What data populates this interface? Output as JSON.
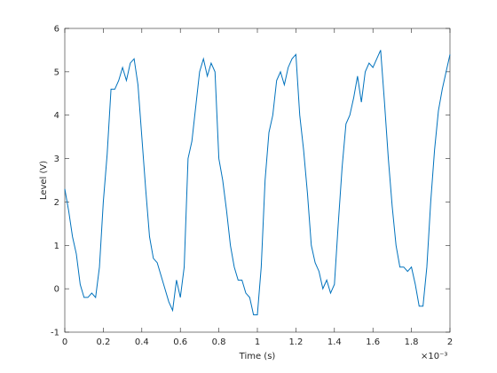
{
  "chart_data": {
    "type": "line",
    "xlabel": "Time (s)",
    "ylabel": "Level (V)",
    "x_exponent": "×10⁻³",
    "xlim": [
      0,
      2
    ],
    "xticks": [
      0,
      0.2,
      0.4,
      0.6,
      0.8,
      1,
      1.2,
      1.4,
      1.6,
      1.8,
      2
    ],
    "ylim": [
      -1,
      6
    ],
    "yticks": [
      -1,
      0,
      1,
      2,
      3,
      4,
      5,
      6
    ],
    "series": [
      {
        "color": "#0072bd",
        "x": [
          0,
          0.02,
          0.04,
          0.06,
          0.08,
          0.1,
          0.12,
          0.14,
          0.16,
          0.18,
          0.2,
          0.22,
          0.24,
          0.26,
          0.28,
          0.3,
          0.32,
          0.34,
          0.36,
          0.38,
          0.4,
          0.42,
          0.44,
          0.46,
          0.48,
          0.5,
          0.52,
          0.54,
          0.56,
          0.58,
          0.6,
          0.62,
          0.64,
          0.66,
          0.68,
          0.7,
          0.72,
          0.74,
          0.76,
          0.78,
          0.8,
          0.82,
          0.84,
          0.86,
          0.88,
          0.9,
          0.92,
          0.94,
          0.96,
          0.98,
          1,
          1.02,
          1.04,
          1.06,
          1.08,
          1.1,
          1.12,
          1.14,
          1.16,
          1.18,
          1.2,
          1.22,
          1.24,
          1.26,
          1.28,
          1.3,
          1.32,
          1.34,
          1.36,
          1.38,
          1.4,
          1.42,
          1.44,
          1.46,
          1.48,
          1.5,
          1.52,
          1.54,
          1.56,
          1.58,
          1.6,
          1.62,
          1.64,
          1.66,
          1.68,
          1.7,
          1.72,
          1.74,
          1.76,
          1.78,
          1.8,
          1.82,
          1.84,
          1.86,
          1.88,
          1.9,
          1.92,
          1.94,
          1.96,
          1.98,
          2
        ],
        "values": [
          2.3,
          1.8,
          1.2,
          0.8,
          0.1,
          -0.2,
          -0.2,
          -0.1,
          -0.2,
          0.5,
          2,
          3.1,
          4.6,
          4.6,
          4.8,
          5.1,
          4.8,
          5.2,
          5.3,
          4.7,
          3.5,
          2.3,
          1.2,
          0.7,
          0.6,
          0.3,
          0,
          -0.3,
          -0.5,
          0.2,
          -0.2,
          0.5,
          3,
          3.4,
          4.2,
          5,
          5.3,
          4.9,
          5.2,
          5,
          3,
          2.5,
          1.8,
          1,
          0.5,
          0.2,
          0.2,
          -0.1,
          -0.2,
          -0.6,
          -0.6,
          0.5,
          2.5,
          3.6,
          4,
          4.8,
          5,
          4.7,
          5.1,
          5.3,
          5.4,
          4,
          3.2,
          2.2,
          1,
          0.6,
          0.4,
          0,
          0.2,
          -0.1,
          0.1,
          1.5,
          2.8,
          3.8,
          4,
          4.4,
          4.9,
          4.3,
          5,
          5.2,
          5.1,
          5.3,
          5.5,
          4.3,
          3,
          1.9,
          1,
          0.5,
          0.5,
          0.4,
          0.5,
          0.1,
          -0.4,
          -0.4,
          0.5,
          2,
          3.2,
          4.1,
          4.6,
          5,
          5.4
        ]
      }
    ]
  }
}
